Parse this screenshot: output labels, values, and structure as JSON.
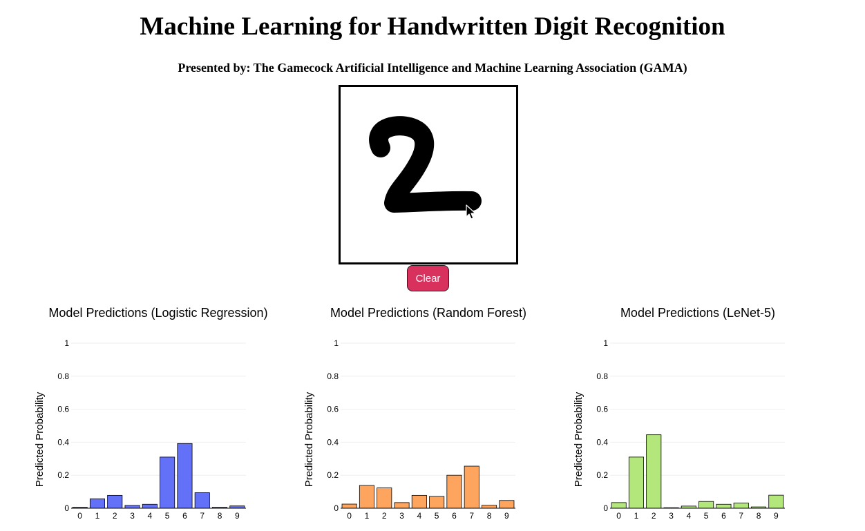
{
  "header": {
    "title": "Machine Learning for Handwritten Digit Recognition",
    "presenter": "Presented by: The Gamecock Artificial Intelligence and Machine Learning Association (GAMA)"
  },
  "drawing_canvas": {
    "drawn_digit": "2"
  },
  "controls": {
    "clear_label": "Clear"
  },
  "colors": {
    "clear_button": "#d9315e",
    "logistic": "#6271f7",
    "random_forest": "#fda45f",
    "lenet": "#b4e77b"
  },
  "chart_data": [
    {
      "type": "bar",
      "title": "Model Predictions (Logistic Regression)",
      "ylabel": "Predicted Probability",
      "xlabel": "",
      "categories": [
        "0",
        "1",
        "2",
        "3",
        "4",
        "5",
        "6",
        "7",
        "8",
        "9"
      ],
      "values": [
        0.006,
        0.057,
        0.078,
        0.017,
        0.024,
        0.31,
        0.392,
        0.094,
        0.006,
        0.014
      ],
      "ylim": [
        0,
        1
      ],
      "yticks": [
        "0",
        "0.2",
        "0.4",
        "0.6",
        "0.8",
        "1"
      ],
      "color": "#6271f7",
      "grid": true
    },
    {
      "type": "bar",
      "title": "Model Predictions (Random Forest)",
      "ylabel": "Predicted Probability",
      "xlabel": "",
      "categories": [
        "0",
        "1",
        "2",
        "3",
        "4",
        "5",
        "6",
        "7",
        "8",
        "9"
      ],
      "values": [
        0.025,
        0.138,
        0.123,
        0.034,
        0.078,
        0.072,
        0.2,
        0.255,
        0.018,
        0.047
      ],
      "ylim": [
        0,
        1
      ],
      "yticks": [
        "0",
        "0.2",
        "0.4",
        "0.6",
        "0.8",
        "1"
      ],
      "color": "#fda45f",
      "grid": true
    },
    {
      "type": "bar",
      "title": "Model Predictions (LeNet-5)",
      "ylabel": "Predicted Probability",
      "xlabel": "",
      "categories": [
        "0",
        "1",
        "2",
        "3",
        "4",
        "5",
        "6",
        "7",
        "8",
        "9"
      ],
      "values": [
        0.034,
        0.31,
        0.445,
        0.003,
        0.013,
        0.041,
        0.024,
        0.032,
        0.008,
        0.079
      ],
      "ylim": [
        0,
        1
      ],
      "yticks": [
        "0",
        "0.2",
        "0.4",
        "0.6",
        "0.8",
        "1"
      ],
      "color": "#b4e77b",
      "grid": true
    }
  ]
}
